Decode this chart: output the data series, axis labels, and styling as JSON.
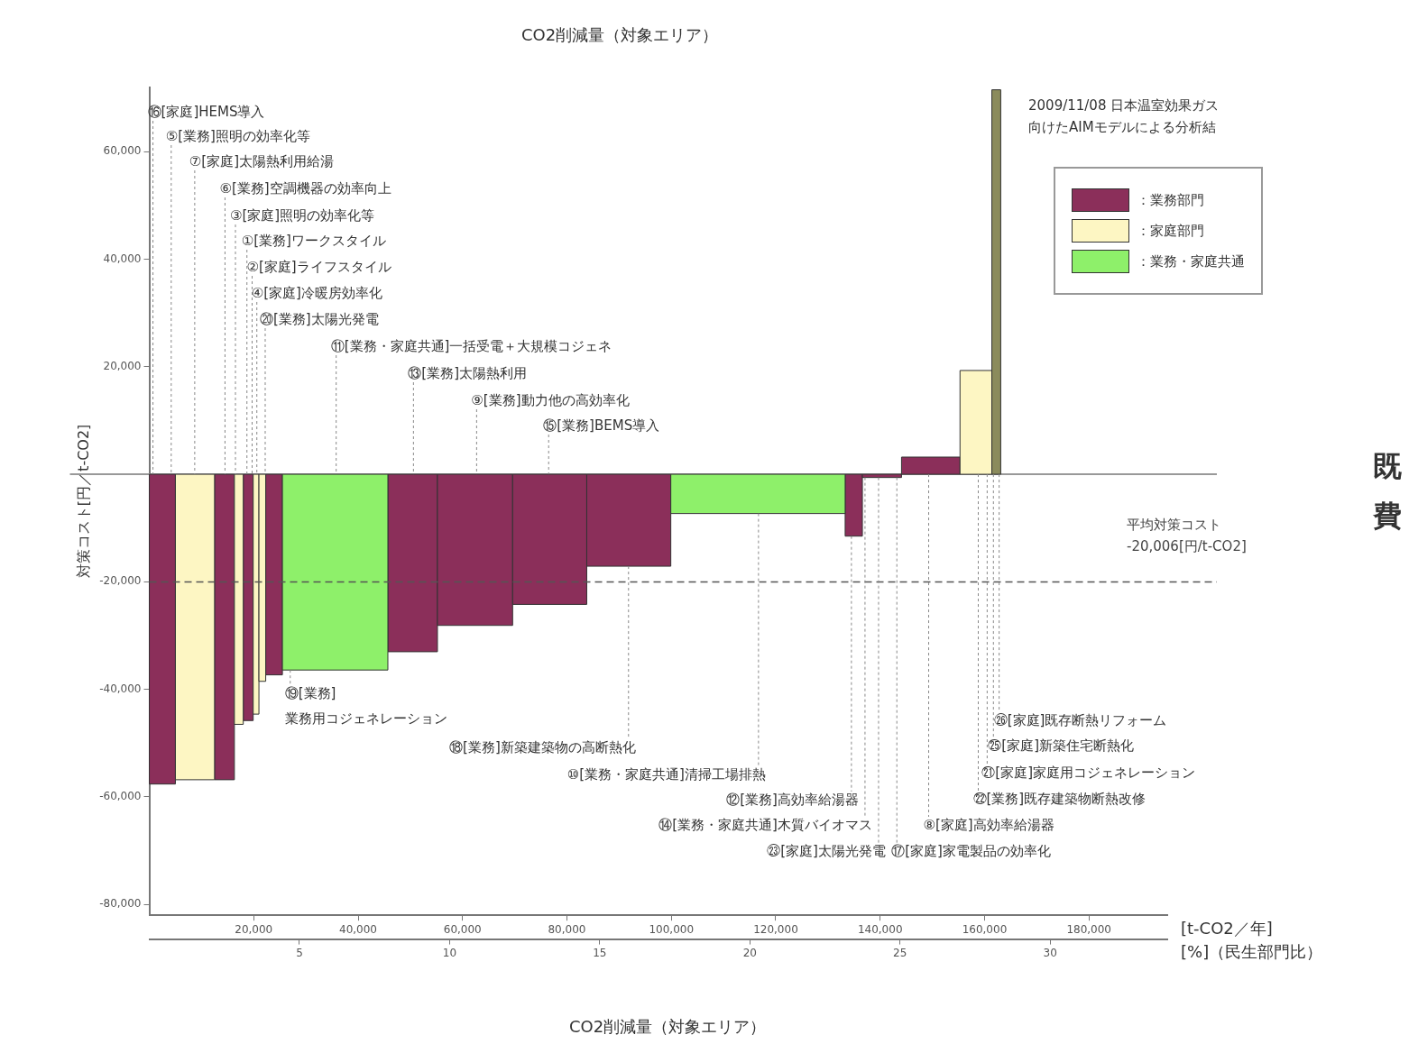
{
  "chart_data": {
    "type": "histogram",
    "title": "CO2削減量（対象エリア）",
    "xlabel": "[t-CO2／年]",
    "x2label": "[%]（民生部門比）",
    "ylabel": "対策コスト[円／t-CO2]",
    "bins": [
      0,
      5000,
      12500,
      16300,
      18000,
      19900,
      21000,
      22300,
      25500,
      45700,
      55200,
      69600,
      83800,
      99900,
      133300,
      136600,
      144100,
      155300,
      161400,
      163100
    ],
    "series": [
      {
        "name": "：業務部門",
        "color": "#8b2f5a",
        "values": [
          -57600,
          null,
          -56800,
          null,
          -45800,
          null,
          null,
          -37300,
          null,
          -33000,
          -28100,
          -24200,
          -17100,
          null,
          -11500,
          -600,
          3200,
          null,
          null
        ]
      },
      {
        "name": "：家庭部門",
        "color": "#fdf6c3",
        "values": [
          null,
          -56800,
          null,
          -46500,
          null,
          -44600,
          -38500,
          null,
          null,
          null,
          null,
          null,
          null,
          null,
          null,
          null,
          null,
          19300,
          null
        ]
      },
      {
        "name": "：業務・家庭共通",
        "color": "#8ef06a",
        "values": [
          null,
          null,
          null,
          null,
          null,
          null,
          null,
          null,
          -36400,
          null,
          null,
          null,
          null,
          -7300,
          null,
          null,
          null,
          null,
          null
        ]
      },
      {
        "color": "#8b8b5c",
        "values": [
          null,
          null,
          null,
          null,
          null,
          null,
          null,
          null,
          null,
          null,
          null,
          null,
          null,
          null,
          null,
          null,
          null,
          null,
          71500
        ]
      }
    ],
    "xlim": [
      0,
      195000
    ],
    "xticks": [
      {
        "value": 20000,
        "label": "20,000"
      },
      {
        "value": 40000,
        "label": "40,000"
      },
      {
        "value": 60000,
        "label": "60,000"
      },
      {
        "value": 80000,
        "label": "80,000"
      },
      {
        "value": 100000,
        "label": "100,000"
      },
      {
        "value": 120000,
        "label": "120,000"
      },
      {
        "value": 140000,
        "label": "140,000"
      },
      {
        "value": 160000,
        "label": "160,000"
      },
      {
        "value": 180000,
        "label": "180,000"
      }
    ],
    "x2lim": [
      0,
      33.9
    ],
    "x2ticks": [
      5,
      10,
      15,
      20,
      25,
      30
    ],
    "ylim": [
      -82000,
      72000
    ],
    "yticks": [
      {
        "value": 60000,
        "label": "60,000"
      },
      {
        "value": 40000,
        "label": "40,000"
      },
      {
        "value": 20000,
        "label": "20,000"
      },
      {
        "value": 0,
        "label": null
      },
      {
        "value": -20000,
        "label": "-20,000"
      },
      {
        "value": -40000,
        "label": "-40,000"
      },
      {
        "value": -60000,
        "label": "-60,000"
      },
      {
        "value": -80000,
        "label": "-80,000"
      }
    ],
    "ref_lines": [
      {
        "axis": "y",
        "value": -20006,
        "label": "平均対策コスト -20,006[円/t-CO2]",
        "color": "#555555",
        "line_style": "dashed"
      }
    ],
    "legend": "top right",
    "grid": false,
    "annotations": [
      {
        "text": "⑯[家庭]HEMS導入",
        "x": 700,
        "y": 0
      },
      {
        "text": "⑤[業務]照明の効率化等",
        "x": 4200,
        "y": 0
      },
      {
        "text": "⑦[家庭]太陽熱利用給湯",
        "x": 8700,
        "y": 0
      },
      {
        "text": "⑥[業務]空調機器の効率向上",
        "x": 14500,
        "y": 0
      },
      {
        "text": "③[家庭]照明の効率化等",
        "x": 16500,
        "y": 0
      },
      {
        "text": "①[業務]ワークスタイル",
        "x": 18700,
        "y": 0
      },
      {
        "text": "②[家庭]ライフスタイル",
        "x": 19700,
        "y": 0
      },
      {
        "text": "④[家庭]冷暖房効率化",
        "x": 20600,
        "y": 0
      },
      {
        "text": "⑳[業務]太陽光発電",
        "x": 22200,
        "y": 0
      },
      {
        "text": "⑪[業務・家庭共通]一括受電＋大規模コジェネ",
        "x": 35800,
        "y": 0
      },
      {
        "text": "⑬[業務]太陽熱利用",
        "x": 50600,
        "y": 0
      },
      {
        "text": "⑨[業務]動力他の高効率化",
        "x": 62700,
        "y": 0
      },
      {
        "text": "⑮[業務]BEMS導入",
        "x": 76500,
        "y": 0
      },
      {
        "text": "⑲[業務] 業務用コジェネレーション",
        "x": 27000,
        "y": -36400
      },
      {
        "text": "⑱[業務]新築建築物の高断熱化",
        "x": 91800,
        "y": -17100
      },
      {
        "text": "⑩[業務・家庭共通]清掃工場排熱",
        "x": 116700,
        "y": -7300
      },
      {
        "text": "⑫[業務]高効率給湯器",
        "x": 134500,
        "y": -11500
      },
      {
        "text": "⑭[業務・家庭共通]木質バイオマス",
        "x": 137100,
        "y": -600
      },
      {
        "text": "㉓[家庭]太陽光発電",
        "x": 139700,
        "y": -600
      },
      {
        "text": "㉖[家庭]既存断熱リフォーム",
        "x": 162800,
        "y": 0
      },
      {
        "text": "㉕[家庭]新築住宅断熱化",
        "x": 161700,
        "y": 0
      },
      {
        "text": "㉑[家庭]家庭用コジェネレーション",
        "x": 160500,
        "y": 0
      },
      {
        "text": "㉒[業務]既存建築物断熱改修",
        "x": 158800,
        "y": 0
      },
      {
        "text": "⑧[家庭]高効率給湯器",
        "x": 149300,
        "y": 0
      },
      {
        "text": "⑰[家庭]家電製品の効率化",
        "x": 143200,
        "y": -600
      },
      "2009/11/08 日本温室効果ガス",
      "向けたAIMモデルによる分析結",
      "既",
      "費",
      "CO2削減量（対象エリア）"
    ]
  }
}
